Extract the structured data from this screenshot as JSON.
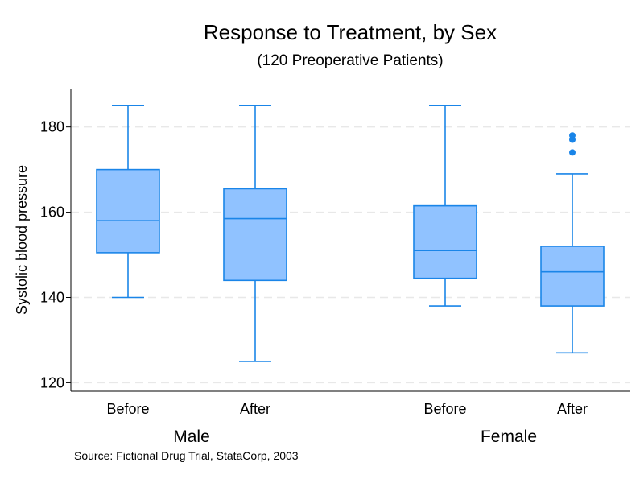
{
  "chart_data": {
    "type": "box",
    "title": "Response to Treatment, by Sex",
    "subtitle": "(120 Preoperative Patients)",
    "ylabel": "Systolic blood pressure",
    "ylim": [
      118,
      189
    ],
    "yticks": [
      120,
      140,
      160,
      180
    ],
    "grid": true,
    "groups": [
      {
        "name": "Male",
        "boxes": [
          {
            "label": "Before",
            "min": 140,
            "q1": 150.5,
            "median": 158,
            "q3": 170,
            "max": 185,
            "outliers": []
          },
          {
            "label": "After",
            "min": 125,
            "q1": 144,
            "median": 158.5,
            "q3": 165.5,
            "max": 185,
            "outliers": []
          }
        ]
      },
      {
        "name": "Female",
        "boxes": [
          {
            "label": "Before",
            "min": 138,
            "q1": 144.5,
            "median": 151,
            "q3": 161.5,
            "max": 185,
            "outliers": []
          },
          {
            "label": "After",
            "min": 127,
            "q1": 138,
            "median": 146,
            "q3": 152,
            "max": 169,
            "outliers": [
              174,
              177,
              178
            ]
          }
        ]
      }
    ],
    "note": "Source: Fictional Drug Trial, StataCorp, 2003",
    "colors": {
      "box_fill": "#90c2ff",
      "box_stroke": "#1a85e8",
      "outlier": "#1a85e8",
      "grid": "#e8e8e8",
      "axis": "#000000"
    }
  }
}
